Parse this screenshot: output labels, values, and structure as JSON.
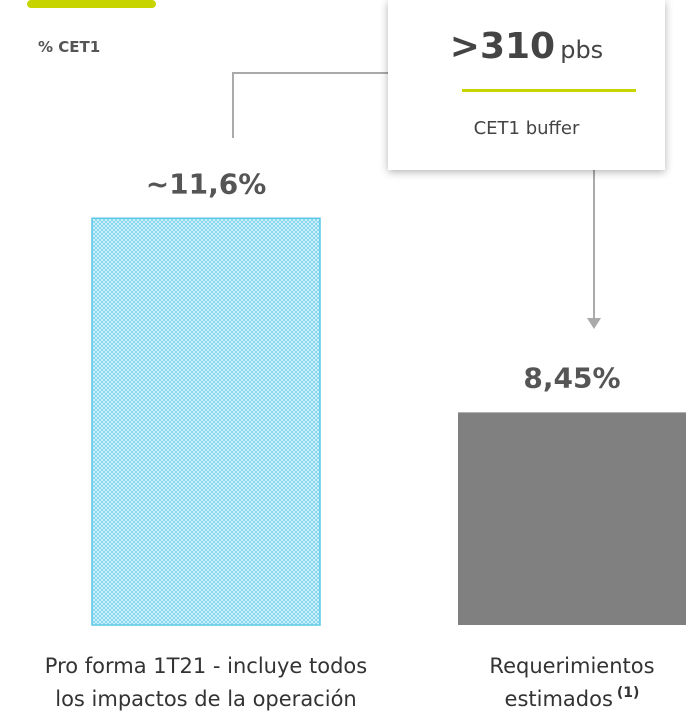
{
  "chart_data": {
    "type": "bar",
    "subtitle": "% CET1",
    "categories": [
      "Pro forma 1T21 - incluye todos los impactos de la operación",
      "Requerimientos estimados"
    ],
    "category_footnotes": [
      null,
      "(1)"
    ],
    "values": [
      11.6,
      8.45
    ],
    "value_labels": [
      "~11,6%",
      "8,45%"
    ],
    "colors": [
      "#5bc8e8",
      "#808080"
    ],
    "hatched": [
      true,
      false
    ],
    "ylim": [
      5,
      13
    ],
    "annotation": {
      "text": ">310",
      "unit": "pbs",
      "caption": "CET1 buffer"
    }
  }
}
